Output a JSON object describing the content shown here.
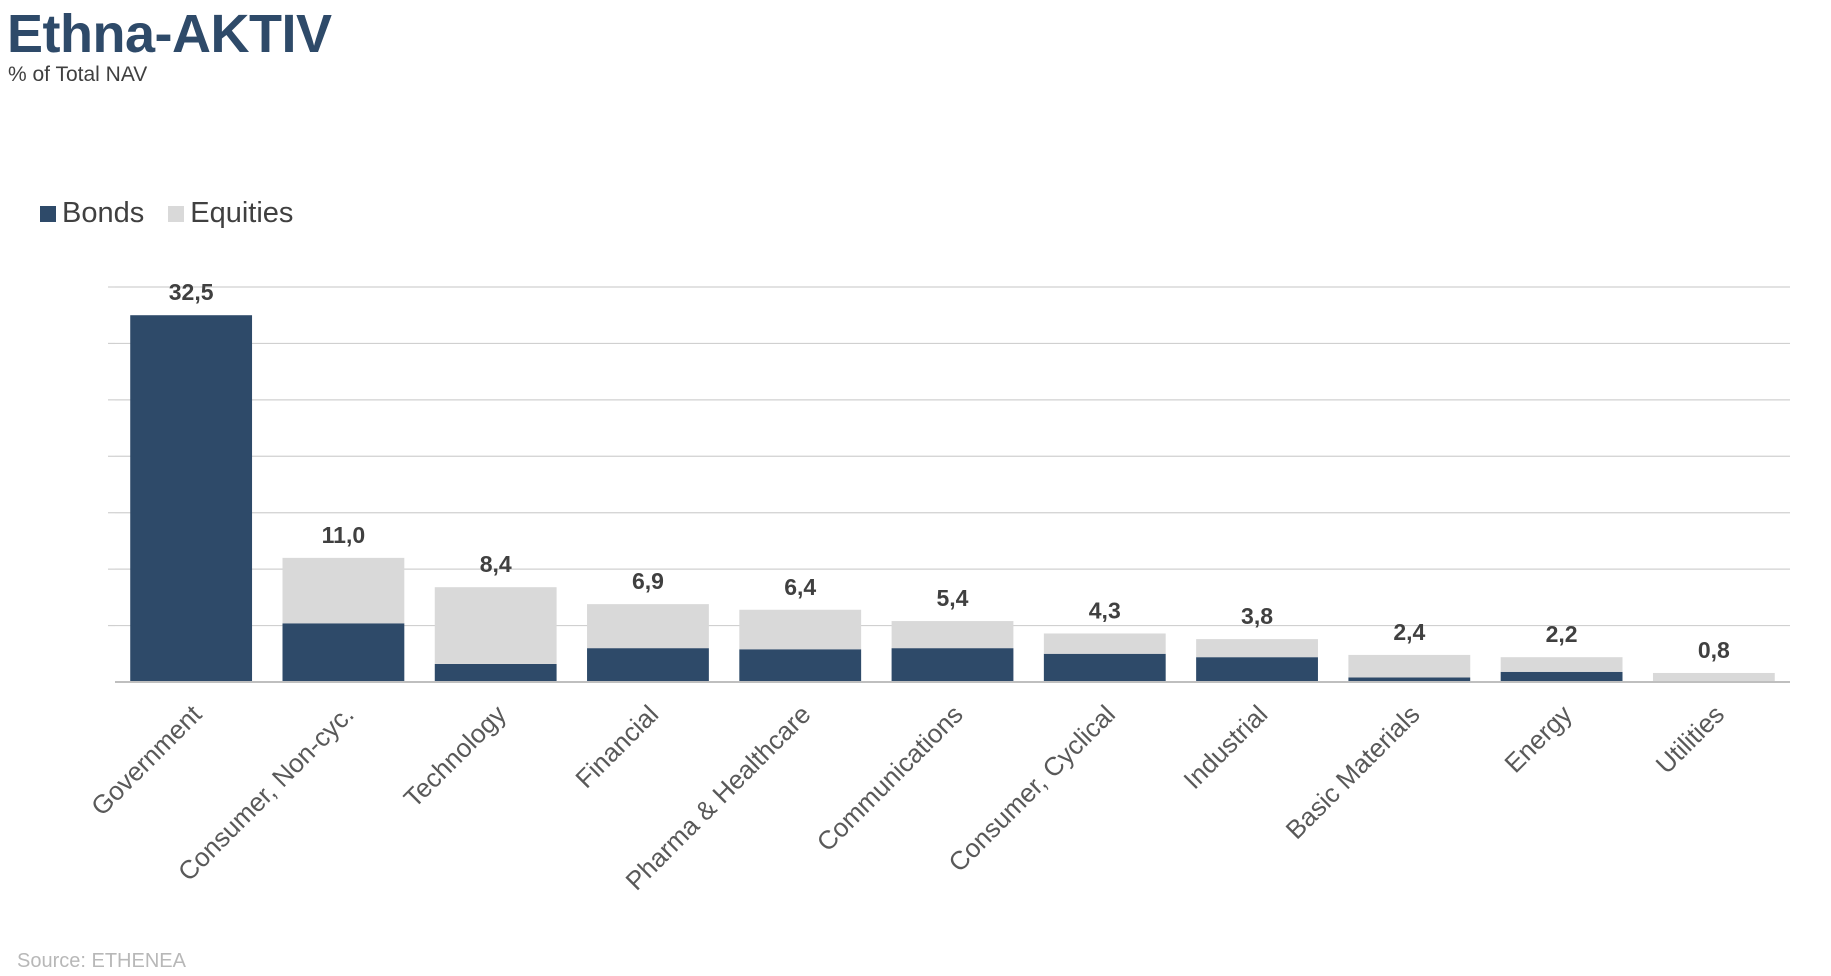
{
  "header": {
    "title": "Ethna-AKTIV",
    "subtitle": "% of Total NAV"
  },
  "footer": {
    "source": "Source: ETHENEA"
  },
  "colors": {
    "bonds": "#2e4a69",
    "equities": "#d9d9d9",
    "grid": "#d0d0d0",
    "axis": "#bfbfbf"
  },
  "chart_data": {
    "type": "bar",
    "stacked": true,
    "categories": [
      "Government",
      "Consumer, Non-cyc.",
      "Technology",
      "Financial",
      "Pharma & Healthcare",
      "Communications",
      "Consumer, Cyclical",
      "Industrial",
      "Basic Materials",
      "Energy",
      "Utilities"
    ],
    "series": [
      {
        "name": "Bonds",
        "values": [
          32.5,
          5.2,
          1.6,
          3.0,
          2.9,
          3.0,
          2.5,
          2.2,
          0.4,
          0.9,
          0.0
        ]
      },
      {
        "name": "Equities",
        "values": [
          0.0,
          5.8,
          6.8,
          3.9,
          3.5,
          2.4,
          1.8,
          1.6,
          2.0,
          1.3,
          0.8
        ]
      }
    ],
    "totals": [
      "32,5",
      "11,0",
      "8,4",
      "6,9",
      "6,4",
      "5,4",
      "4,3",
      "3,8",
      "2,4",
      "2,2",
      "0,8"
    ],
    "ylim": [
      0,
      35
    ],
    "grid": true,
    "legend": "top-left",
    "xlabel": "",
    "ylabel": ""
  }
}
